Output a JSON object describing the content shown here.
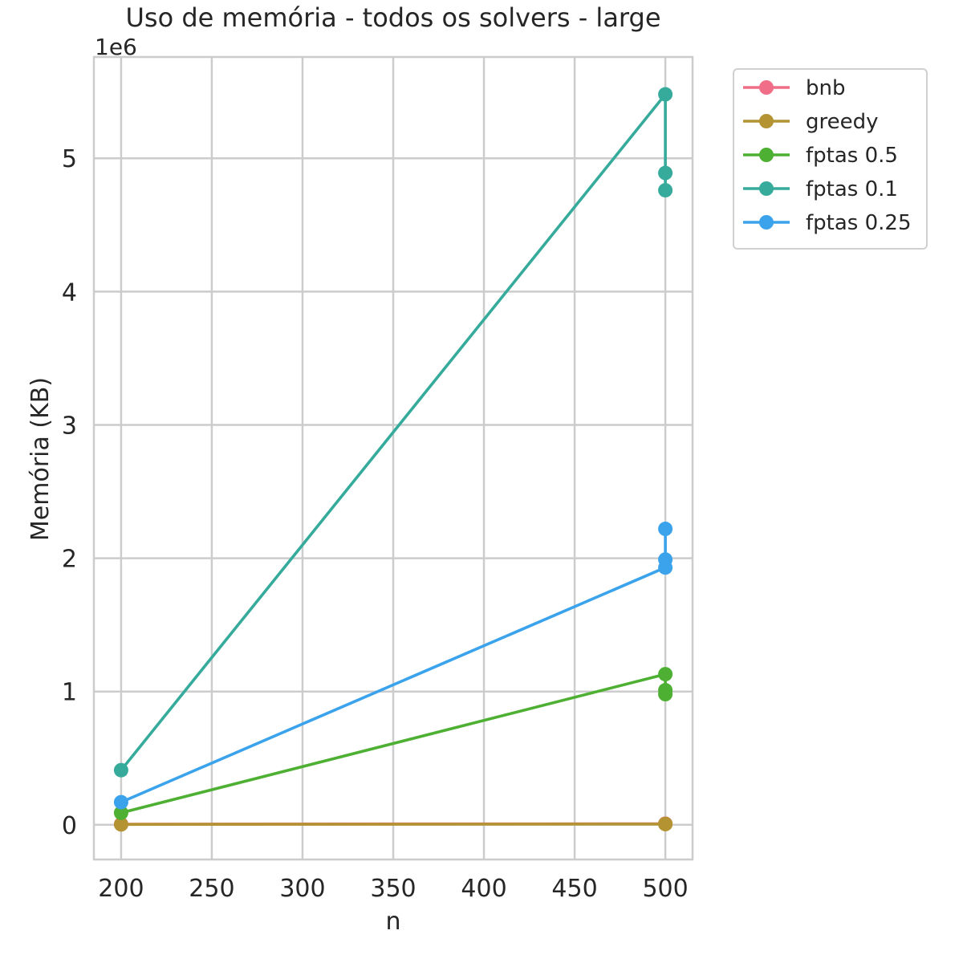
{
  "chart_data": {
    "type": "line",
    "title": "Uso de memória - todos os solvers - large",
    "xlabel": "n",
    "ylabel": "Memória (KB)",
    "y_offset_label": "1e6",
    "y_scale_factor": 1000000,
    "xlim": [
      185,
      515
    ],
    "ylim": [
      -260000,
      5760000
    ],
    "x_ticks": [
      200,
      250,
      300,
      350,
      400,
      450,
      500
    ],
    "y_ticks": [
      0,
      1,
      2,
      3,
      4,
      5
    ],
    "grid": true,
    "legend_position": "outside-top-right",
    "series": [
      {
        "name": "bnb",
        "color": "#f06e87",
        "points": [
          [
            200,
            5000
          ],
          [
            500,
            8000
          ],
          [
            500,
            8000
          ],
          [
            500,
            8000
          ]
        ]
      },
      {
        "name": "greedy",
        "color": "#b49333",
        "points": [
          [
            200,
            3000
          ],
          [
            500,
            6000
          ],
          [
            500,
            6000
          ],
          [
            500,
            6000
          ]
        ]
      },
      {
        "name": "fptas 0.5",
        "color": "#4eb033",
        "points": [
          [
            200,
            90000
          ],
          [
            500,
            1130000
          ],
          [
            500,
            1010000
          ],
          [
            500,
            980000
          ]
        ]
      },
      {
        "name": "fptas 0.1",
        "color": "#36ab9c",
        "points": [
          [
            200,
            410000
          ],
          [
            500,
            5480000
          ],
          [
            500,
            4890000
          ],
          [
            500,
            4760000
          ]
        ]
      },
      {
        "name": "fptas 0.25",
        "color": "#3ba3ec",
        "points": [
          [
            200,
            170000
          ],
          [
            500,
            1930000
          ],
          [
            500,
            1990000
          ],
          [
            500,
            2220000
          ]
        ]
      }
    ]
  }
}
